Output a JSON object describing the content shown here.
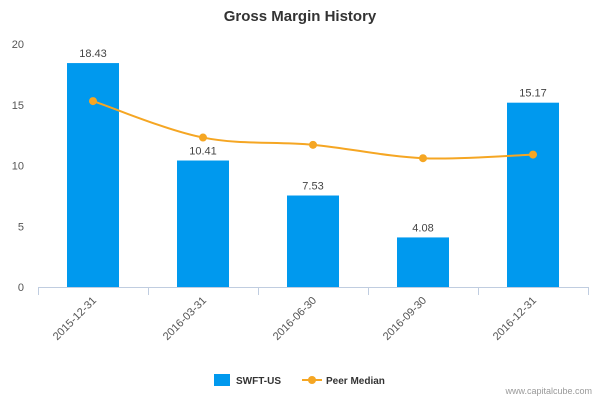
{
  "chart_data": {
    "type": "bar",
    "title": "Gross Margin History",
    "categories": [
      "2015-12-31",
      "2016-03-31",
      "2016-06-30",
      "2016-09-30",
      "2016-12-31"
    ],
    "series": [
      {
        "name": "SWFT-US",
        "type": "bar",
        "color": "#0099ee",
        "values": [
          18.43,
          10.41,
          7.53,
          4.08,
          15.17
        ],
        "labels": [
          "18.43",
          "10.41",
          "7.53",
          "4.08",
          "15.17"
        ]
      },
      {
        "name": "Peer Median",
        "type": "line",
        "color": "#f5a623",
        "values": [
          15.3,
          12.3,
          11.7,
          10.6,
          10.9
        ]
      }
    ],
    "yticks": [
      "0",
      "5",
      "10",
      "15",
      "20"
    ],
    "ylim": [
      0,
      20
    ],
    "grid": false,
    "legend": "bottom-center"
  },
  "credit": "www.capitalcube.com"
}
